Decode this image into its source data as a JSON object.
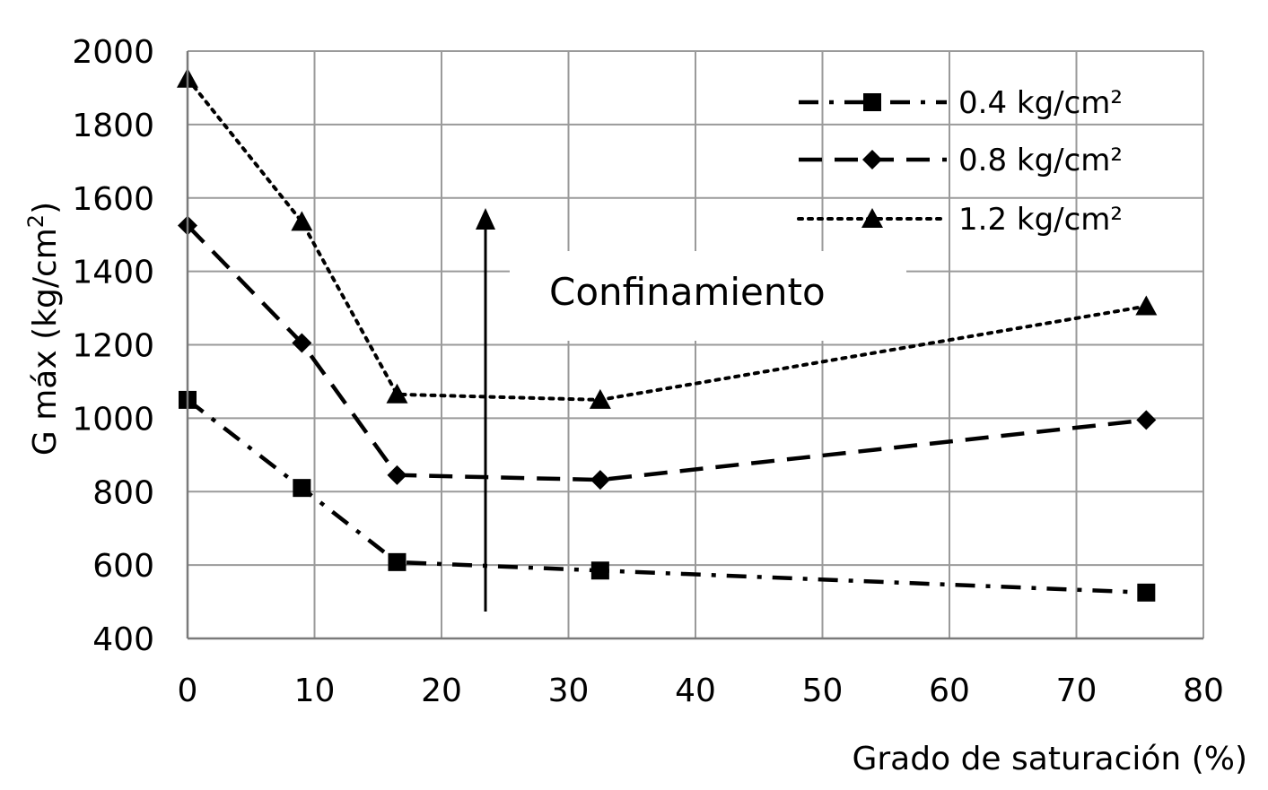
{
  "chart_data": {
    "type": "line",
    "xlabel": "Grado de saturación (%)",
    "ylabel_main": "G máx (kg/cm",
    "ylabel_sup": "2",
    "ylabel_close": ")",
    "xlim": [
      0,
      80
    ],
    "ylim": [
      400,
      2000
    ],
    "xticks": [
      0,
      10,
      20,
      30,
      40,
      50,
      60,
      70,
      80
    ],
    "yticks": [
      400,
      600,
      800,
      1000,
      1200,
      1400,
      1600,
      1800,
      2000
    ],
    "grid": true,
    "legend_position": "top-right",
    "annotation": "Confinamiento",
    "x": [
      0,
      9,
      16.5,
      32.5,
      75.5
    ],
    "series": [
      {
        "name": "0.4 kg/cm²",
        "marker": "square",
        "line_style": "dash-dot",
        "values": [
          1050,
          810,
          608,
          585,
          525
        ]
      },
      {
        "name": "0.8 kg/cm²",
        "marker": "diamond",
        "line_style": "dash",
        "values": [
          1525,
          1205,
          845,
          832,
          995
        ]
      },
      {
        "name": "1.2 kg/cm²",
        "marker": "triangle",
        "line_style": "dot",
        "values": [
          1925,
          1535,
          1065,
          1050,
          1305
        ]
      }
    ],
    "colors": {
      "line": "#000000",
      "grid": "#9a9a9a",
      "background": "#ffffff"
    }
  }
}
